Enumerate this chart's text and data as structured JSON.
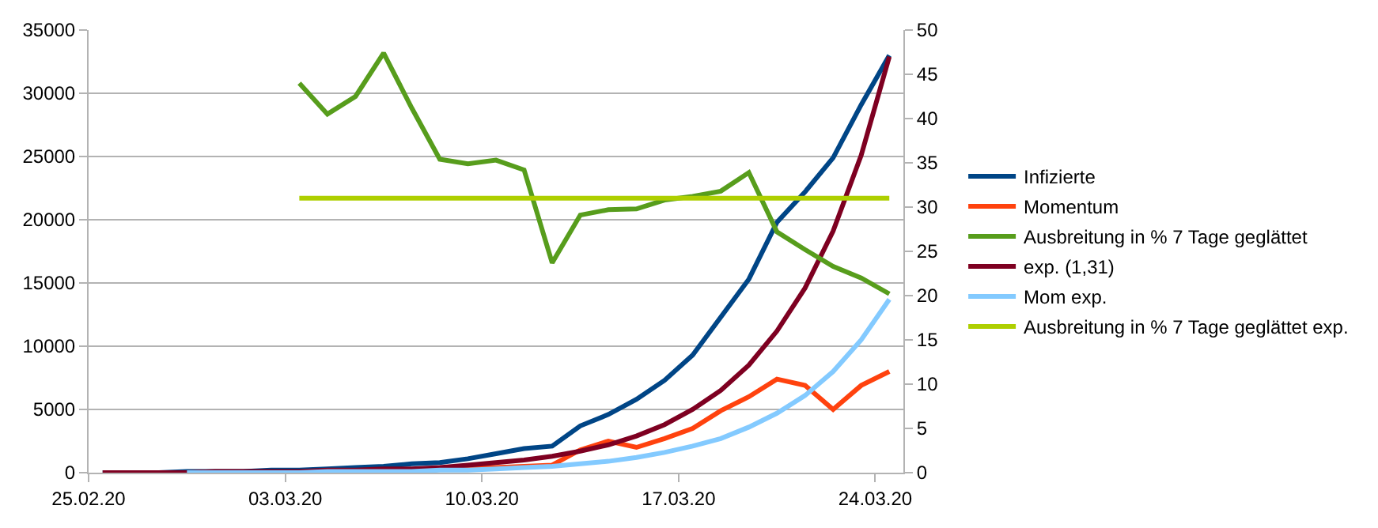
{
  "chart_data": {
    "type": "line",
    "x": [
      "--02-25T12:00",
      "--02-26T12:00",
      "--02-27T12:00",
      "--02-28T12:00",
      "--02-29T12:00",
      "--03-01T12:00",
      "--03-02T12:00",
      "--03-03T12:00",
      "--03-04T12:00",
      "--03-05T12:00",
      "--03-06T12:00",
      "--03-07T12:00",
      "--03-08T12:00",
      "--03-09T12:00",
      "--03-10T12:00",
      "--03-11T12:00",
      "--03-12T12:00",
      "--03-13T12:00",
      "--03-14T12:00",
      "--03-15T12:00",
      "--03-16T12:00",
      "--03-17T12:00",
      "--03-18T12:00",
      "--03-19T12:00",
      "--03-20T12:00",
      "--03-21T12:00",
      "--03-22T12:00",
      "--03-23T12:00",
      "--03-24T12:00"
    ],
    "series": [
      {
        "name": "Infizierte",
        "color": "#004586",
        "values": [
          0,
          0,
          0,
          100,
          100,
          100,
          200,
          200,
          300,
          400,
          500,
          700,
          800,
          1100,
          1500,
          1900,
          2100,
          3700,
          4600,
          5800,
          7300,
          9300,
          12300,
          15300,
          19800,
          22200,
          24900,
          29100,
          33000
        ]
      },
      {
        "name": "Momentum",
        "color": "#ff420e",
        "values": [
          null,
          null,
          null,
          null,
          null,
          null,
          null,
          null,
          null,
          null,
          null,
          null,
          300,
          400,
          400,
          500,
          600,
          1800,
          2500,
          2000,
          2700,
          3500,
          4900,
          6000,
          7400,
          6900,
          5000,
          6900,
          8000
        ]
      },
      {
        "name": "Ausbreitung in % 7 Tage geglättet",
        "color": "#579d1c",
        "axis": "y2",
        "values": [
          null,
          null,
          null,
          null,
          null,
          null,
          null,
          44.0,
          40.5,
          42.5,
          47.4,
          41.2,
          35.4,
          34.9,
          35.3,
          34.2,
          23.7,
          29.1,
          29.7,
          29.8,
          30.8,
          31.2,
          31.8,
          33.9,
          27.2,
          25.2,
          23.3,
          22.0,
          20.2
        ]
      },
      {
        "name": "exp. (1,31)",
        "color": "#7e0021",
        "values": [
          0,
          0,
          0,
          0,
          100,
          100,
          100,
          100,
          200,
          200,
          300,
          300,
          400,
          600,
          800,
          1000,
          1300,
          1700,
          2200,
          2900,
          3800,
          5000,
          6500,
          8500,
          11200,
          14600,
          19100,
          25100,
          32900
        ]
      },
      {
        "name": "Mom exp.",
        "color": "#83caff",
        "values": [
          null,
          null,
          null,
          0,
          0,
          0,
          0,
          0,
          100,
          100,
          100,
          100,
          200,
          200,
          300,
          400,
          500,
          700,
          900,
          1200,
          1600,
          2100,
          2700,
          3600,
          4700,
          6100,
          8000,
          10500,
          13700
        ]
      },
      {
        "name": "Ausbreitung in % 7 Tage geglättet exp.",
        "color": "#aecf00",
        "axis": "y2",
        "values": [
          null,
          null,
          null,
          null,
          null,
          null,
          null,
          31,
          31,
          31,
          31,
          31,
          31,
          31,
          31,
          31,
          31,
          31,
          31,
          31,
          31,
          31,
          31,
          31,
          31,
          31,
          31,
          31,
          31
        ]
      }
    ],
    "xlim": [
      "--02-25",
      "--03-25"
    ],
    "xticks": [
      {
        "value": "--02-25",
        "label": "25.02.20"
      },
      {
        "value": "--03-03",
        "label": "03.03.20"
      },
      {
        "value": "--03-10",
        "label": "10.03.20"
      },
      {
        "value": "--03-17",
        "label": "17.03.20"
      },
      {
        "value": "--03-24",
        "label": "24.03.20"
      }
    ],
    "ylim": [
      0,
      35000
    ],
    "yticks": [
      0,
      5000,
      10000,
      15000,
      20000,
      25000,
      30000,
      35000
    ],
    "y2lim": [
      0,
      50
    ],
    "y2ticks": [
      0,
      5,
      10,
      15,
      20,
      25,
      30,
      35,
      40,
      45,
      50
    ],
    "grid": "y",
    "legend": "right"
  }
}
